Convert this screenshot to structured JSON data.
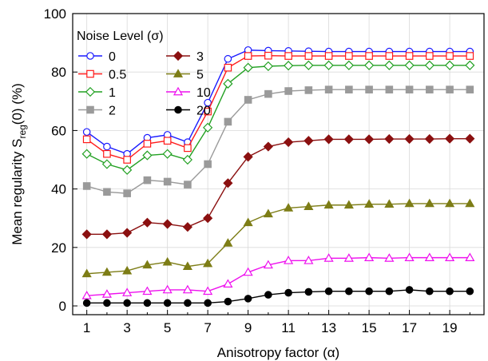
{
  "chart_data": {
    "type": "line",
    "xlabel": "Anisotropy factor (α)",
    "ylabel_main": "Mean regularity S",
    "ylabel_sub": "reg",
    "ylabel_tail": "(0) (%)",
    "legend_title": "Noise Level (σ)",
    "legend_position": "top-left",
    "grid": true,
    "xlim": [
      0.3,
      20.7
    ],
    "ylim": [
      -3,
      100
    ],
    "x_ticks": [
      1,
      3,
      5,
      7,
      9,
      11,
      13,
      15,
      17,
      19
    ],
    "y_ticks": [
      0,
      20,
      40,
      60,
      80,
      100
    ],
    "x": [
      1,
      2,
      3,
      4,
      5,
      6,
      7,
      8,
      9,
      10,
      11,
      12,
      13,
      14,
      15,
      16,
      17,
      18,
      19,
      20
    ],
    "series": [
      {
        "name": "0",
        "color": "#1a1aff",
        "marker": "circle-open",
        "values": [
          59.5,
          54.5,
          52,
          57.5,
          58.5,
          56,
          69.5,
          84.5,
          87.5,
          87.3,
          87.2,
          87.1,
          87,
          87,
          87,
          87,
          87,
          87,
          87,
          87
        ]
      },
      {
        "name": "0.5",
        "color": "#ff1a1a",
        "marker": "square-open",
        "values": [
          57,
          52,
          50,
          55.5,
          56.5,
          54,
          66.5,
          81.5,
          85.5,
          85.6,
          85.5,
          85.5,
          85.5,
          85.5,
          85.5,
          85.5,
          85.5,
          85.5,
          85.5,
          85.5
        ]
      },
      {
        "name": "1",
        "color": "#22a022",
        "marker": "diamond-open",
        "values": [
          52,
          48.5,
          46.5,
          51.5,
          52,
          50,
          61,
          76,
          81.5,
          82,
          82.2,
          82.3,
          82.3,
          82.3,
          82.3,
          82.3,
          82.3,
          82.3,
          82.3,
          82.3
        ]
      },
      {
        "name": "3",
        "color": "#8b1010",
        "marker": "diamond-filled",
        "values": [
          24.5,
          24.5,
          25,
          28.5,
          28,
          27,
          30,
          42,
          51,
          54.5,
          56,
          56.5,
          57,
          57,
          57,
          57.1,
          57.1,
          57.1,
          57.2,
          57.2
        ]
      },
      {
        "name": "5",
        "color": "#7d7d16",
        "marker": "triangle-filled",
        "values": [
          11,
          11.5,
          12,
          14,
          15,
          13.5,
          14.5,
          21.5,
          28.5,
          31.5,
          33.5,
          34,
          34.5,
          34.5,
          34.8,
          34.8,
          35,
          35,
          35,
          35
        ]
      },
      {
        "name": "2",
        "color": "#9a9a9a",
        "marker": "square-filled",
        "values": [
          41,
          39,
          38.5,
          43,
          42.5,
          41.5,
          48.5,
          63,
          70.5,
          72.5,
          73.5,
          73.8,
          74,
          74,
          74,
          74,
          74,
          74,
          74,
          74
        ]
      },
      {
        "name": "10",
        "color": "#ee10ee",
        "marker": "triangle-open",
        "values": [
          3.5,
          4,
          4.5,
          5,
          5.5,
          5.5,
          5,
          7.5,
          11.5,
          14,
          15.5,
          15.5,
          16.3,
          16.3,
          16.5,
          16.3,
          16.5,
          16.5,
          16.5,
          16.5
        ]
      },
      {
        "name": "20",
        "color": "#000000",
        "marker": "circle-filled",
        "values": [
          1,
          1,
          1,
          1,
          1,
          1,
          1,
          1.5,
          2.5,
          3.8,
          4.5,
          4.8,
          5,
          5,
          5,
          5,
          5.5,
          5,
          5,
          5
        ]
      }
    ],
    "legend_layout": [
      [
        "0",
        "3"
      ],
      [
        "0.5",
        "5"
      ],
      [
        "1",
        "10"
      ],
      [
        "2",
        "20"
      ]
    ]
  }
}
